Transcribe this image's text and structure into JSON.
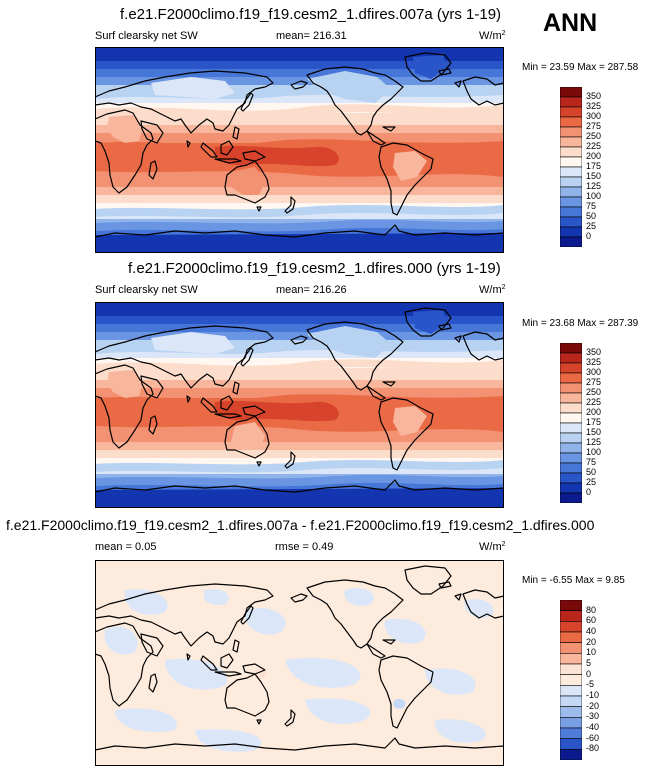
{
  "season": "ANN",
  "panels": [
    {
      "title": "f.e21.F2000climo.f19_f19.cesm2_1.dfires.007a (yrs 1-19)",
      "left": "Surf clearsky net SW",
      "middle": "mean= 216.31",
      "units": "W/m",
      "units_exp": "2",
      "minmax": "Min = 23.59 Max = 287.58",
      "scale": [
        "350",
        "325",
        "300",
        "275",
        "250",
        "225",
        "200",
        "175",
        "150",
        "125",
        "100",
        "75",
        "50",
        "25",
        "0"
      ]
    },
    {
      "title": "f.e21.F2000climo.f19_f19.cesm2_1.dfires.000 (yrs 1-19)",
      "left": "Surf clearsky net SW",
      "middle": "mean= 216.26",
      "units": "W/m",
      "units_exp": "2",
      "minmax": "Min = 23.68 Max = 287.39",
      "scale": [
        "350",
        "325",
        "300",
        "275",
        "250",
        "225",
        "200",
        "175",
        "150",
        "125",
        "100",
        "75",
        "50",
        "25",
        "0"
      ]
    },
    {
      "title": "f.e21.F2000climo.f19_f19.cesm2_1.dfires.007a - f.e21.F2000climo.f19_f19.cesm2_1.dfires.000",
      "left": "mean =  0.05",
      "middle": "rmse =  0.49",
      "units": "W/m",
      "units_exp": "2",
      "minmax": "Min = -6.55 Max =  9.85",
      "scale": [
        "80",
        "60",
        "40",
        "20",
        "10",
        "5",
        "0",
        "-5",
        "-10",
        "-20",
        "-30",
        "-40",
        "-60",
        "-80"
      ]
    }
  ],
  "colors": {
    "abs_scale": [
      "#7a0a0a",
      "#b8261c",
      "#d8442b",
      "#ea6a45",
      "#f29272",
      "#f8b79d",
      "#fcdcca",
      "#fff7f0",
      "#dbe7f8",
      "#b8d2f2",
      "#90b4ea",
      "#6a95e2",
      "#4676d8",
      "#2a55c8",
      "#1435b0",
      "#0b1a8c"
    ],
    "diff_scale": [
      "#7a0a0a",
      "#b8261c",
      "#d8442b",
      "#ea6a45",
      "#f29272",
      "#f8b79d",
      "#fde3d4",
      "#fdebdd",
      "#dbe7f8",
      "#c3d8f4",
      "#9dbcec",
      "#789ee4",
      "#4f7cda",
      "#2a55c8",
      "#0b1a8c"
    ]
  }
}
